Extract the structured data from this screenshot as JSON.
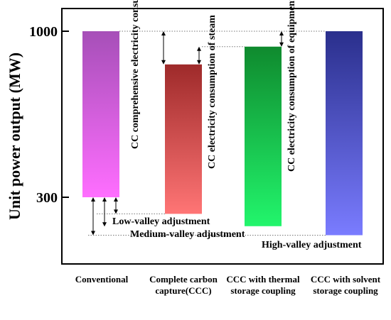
{
  "chart_data": {
    "type": "bar",
    "ylabel": "Unit power output (MW)",
    "yticks": [
      1000,
      300
    ],
    "ylim": [
      30,
      1100
    ],
    "categories": [
      "Conventional",
      "Complete carbon capture(CCC)",
      "CCC with thermal storage coupling",
      "CCC with solvent storage coupling"
    ],
    "bars": [
      {
        "top": 1000,
        "bottom": 300,
        "color_top": "#a64fb8",
        "color_bottom": "#ff6eff"
      },
      {
        "top": 860,
        "bottom": 230,
        "color_top": "#9e2a2a",
        "color_bottom": "#ff7575"
      },
      {
        "top": 935,
        "bottom": 178,
        "color_top": "#0f8a2e",
        "color_bottom": "#22f56c"
      },
      {
        "top": 1000,
        "bottom": 140,
        "color_top": "#2a2f8c",
        "color_bottom": "#7a7cff"
      }
    ],
    "annotations": [
      {
        "text": "CC comprehensive electricity consumption"
      },
      {
        "text": "CC electricity consumption of steam"
      },
      {
        "text": "CC electricity consumption of equipment"
      },
      {
        "text": "Low-valley adjustment"
      },
      {
        "text": "Medium-valley adjustment"
      },
      {
        "text": "High-valley adjustment"
      }
    ],
    "grid": false
  }
}
